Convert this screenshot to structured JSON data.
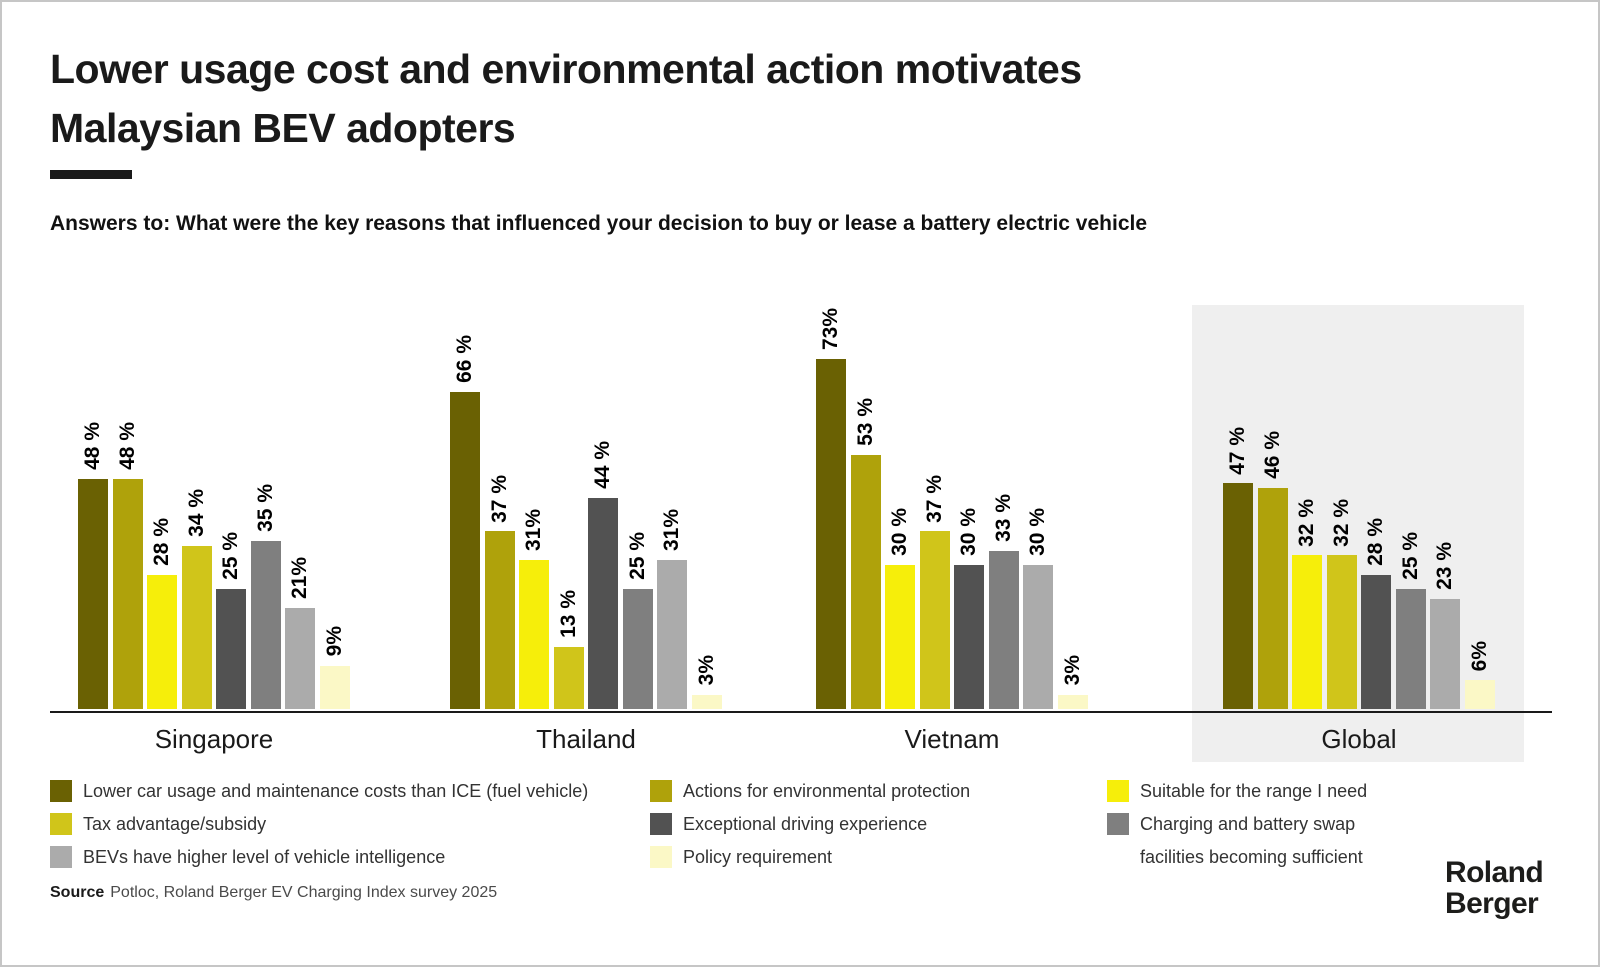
{
  "header": {
    "title_line1": "Lower usage cost and environmental action motivates",
    "title_line2": "Malaysian BEV adopters",
    "subtitle": "Answers to: What were the key reasons that influenced your decision to buy or lease a battery electric vehicle"
  },
  "chart_data": {
    "type": "bar",
    "unit": "%",
    "ylim": [
      0,
      80
    ],
    "grid": false,
    "legend_position": "bottom",
    "highlight_group": "Global",
    "highlight_bg": "#efefef",
    "categories": [
      "Singapore",
      "Thailand",
      "Vietnam",
      "Global"
    ],
    "series": [
      {
        "name": "Lower car usage and maintenance costs than ICE (fuel vehicle)",
        "color": "#6a6103",
        "values": [
          48,
          66,
          73,
          47
        ]
      },
      {
        "name": "Actions for environmental protection",
        "color": "#afa20b",
        "values": [
          48,
          37,
          53,
          46
        ]
      },
      {
        "name": "Suitable for the range I need",
        "color": "#f6ee0a",
        "values": [
          28,
          31,
          30,
          32
        ]
      },
      {
        "name": "Tax advantage/subsidy",
        "color": "#d0c51a",
        "values": [
          34,
          13,
          37,
          32
        ]
      },
      {
        "name": "Exceptional driving experience",
        "color": "#525252",
        "values": [
          25,
          44,
          30,
          28
        ]
      },
      {
        "name": "Charging and battery swap facilities becoming sufficient",
        "color": "#7f7f7f",
        "values": [
          35,
          25,
          33,
          25
        ]
      },
      {
        "name": "BEVs have higher level of vehicle intelligence",
        "color": "#ababab",
        "values": [
          21,
          31,
          30,
          23
        ]
      },
      {
        "name": "Policy requirement",
        "color": "#fbf8c6",
        "values": [
          9,
          3,
          3,
          6
        ]
      }
    ],
    "value_labels": [
      [
        "48 %",
        "48 %",
        "28 %",
        "34 %",
        "25 %",
        "35 %",
        "21%",
        "9%"
      ],
      [
        "66 %",
        "37 %",
        "31%",
        "13 %",
        "44 %",
        "25 %",
        "31%",
        "3%"
      ],
      [
        "73%",
        "53 %",
        "30 %",
        "37 %",
        "30 %",
        "33 %",
        "30 %",
        "3%"
      ],
      [
        "47 %",
        "46 %",
        "32 %",
        "32 %",
        "28 %",
        "25 %",
        "23 %",
        "6%"
      ]
    ]
  },
  "legend": {
    "columns": [
      {
        "items": [
          {
            "label": "Lower car usage and maintenance costs than ICE (fuel vehicle)",
            "color": "#6a6103"
          },
          {
            "label": "Tax advantage/subsidy",
            "color": "#d0c51a"
          },
          {
            "label": "BEVs have higher level of vehicle intelligence",
            "color": "#ababab"
          }
        ]
      },
      {
        "items": [
          {
            "label": "Actions for environmental protection",
            "color": "#afa20b"
          },
          {
            "label": "Exceptional driving experience",
            "color": "#525252"
          },
          {
            "label": "Policy requirement",
            "color": "#fbf8c6"
          }
        ]
      },
      {
        "items": [
          {
            "label": "Suitable for the range I need",
            "color": "#f6ee0a"
          },
          {
            "label": "Charging and battery swap",
            "label2": "facilities becoming sufficient",
            "color": "#7f7f7f"
          }
        ]
      }
    ]
  },
  "footer": {
    "source_label": "Source",
    "source_text": "Potloc, Roland Berger EV Charging Index survey 2025",
    "logo_line1": "Roland",
    "logo_line2": "Berger"
  }
}
